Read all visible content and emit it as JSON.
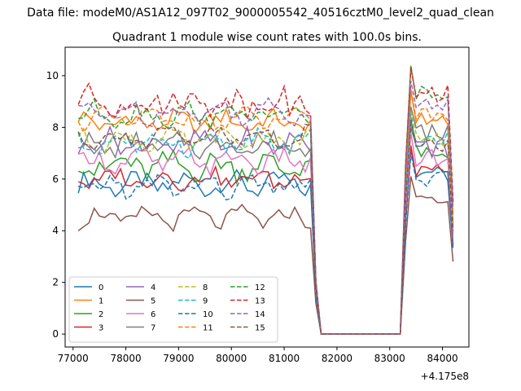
{
  "suptitle": "Data file: modeM0/AS1A12_097T02_9000005542_40516cztM0_level2_quad_clean",
  "chart_data": {
    "type": "line",
    "title": "Quadrant 1 module wise count rates with 100.0s bins.",
    "xlabel": "",
    "ylabel": "",
    "x_offset_label": "+4.175e8",
    "xlim": [
      76850,
      84500
    ],
    "ylim": [
      -0.5,
      11.1
    ],
    "x_ticks": [
      77000,
      78000,
      79000,
      80000,
      81000,
      82000,
      83000,
      84000
    ],
    "y_ticks": [
      0,
      2,
      4,
      6,
      8,
      10
    ],
    "grid": false,
    "legend_position": "lower-left",
    "legend_columns": 4,
    "x_segments": [
      {
        "start": 77100,
        "end": 81500,
        "step": 100
      },
      {
        "start": 81600,
        "end": 81700,
        "step": 100
      },
      {
        "start": 83200,
        "end": 83300,
        "step": 100
      },
      {
        "start": 83400,
        "end": 84200,
        "step": 100
      }
    ],
    "series": [
      {
        "name": "0",
        "color": "#1f77b4",
        "dash": "solid",
        "base": 5.8,
        "amp": 0.35,
        "drop": 1.5,
        "post": 6.2
      },
      {
        "name": "1",
        "color": "#ff7f0e",
        "dash": "solid",
        "base": 8.2,
        "amp": 0.3,
        "drop": 2.0,
        "post": 8.4
      },
      {
        "name": "2",
        "color": "#2ca02c",
        "dash": "solid",
        "base": 6.5,
        "amp": 0.45,
        "drop": 1.8,
        "post": 7.0
      },
      {
        "name": "3",
        "color": "#d62728",
        "dash": "solid",
        "base": 6.0,
        "amp": 0.3,
        "drop": 1.6,
        "post": 6.3
      },
      {
        "name": "4",
        "color": "#9467bd",
        "dash": "solid",
        "base": 7.4,
        "amp": 0.4,
        "drop": 1.9,
        "post": 7.2
      },
      {
        "name": "5",
        "color": "#8c564b",
        "dash": "solid",
        "base": 4.5,
        "amp": 0.3,
        "drop": 1.2,
        "post": 5.1
      },
      {
        "name": "6",
        "color": "#e377c2",
        "dash": "solid",
        "base": 6.7,
        "amp": 0.35,
        "drop": 1.7,
        "post": 6.8
      },
      {
        "name": "7",
        "color": "#7f7f7f",
        "dash": "solid",
        "base": 7.3,
        "amp": 0.35,
        "drop": 1.8,
        "post": 7.8
      },
      {
        "name": "8",
        "color": "#bcbd22",
        "dash": "dashed",
        "base": 7.5,
        "amp": 0.3,
        "drop": 1.9,
        "post": 7.6
      },
      {
        "name": "9",
        "color": "#17becf",
        "dash": "dashed",
        "base": 7.4,
        "amp": 0.35,
        "drop": 1.9,
        "post": 7.5
      },
      {
        "name": "10",
        "color": "#1f77b4",
        "dash": "dashed",
        "base": 5.7,
        "amp": 0.35,
        "drop": 1.5,
        "post": 6.0
      },
      {
        "name": "11",
        "color": "#ff7f0e",
        "dash": "dashed",
        "base": 8.3,
        "amp": 0.3,
        "drop": 2.0,
        "post": 8.5
      },
      {
        "name": "12",
        "color": "#2ca02c",
        "dash": "dashed",
        "base": 8.5,
        "amp": 0.35,
        "drop": 2.0,
        "post": 9.4
      },
      {
        "name": "13",
        "color": "#d62728",
        "dash": "dashed",
        "base": 9.0,
        "amp": 0.5,
        "drop": 2.1,
        "post": 9.3
      },
      {
        "name": "14",
        "color": "#9467bd",
        "dash": "dashed",
        "base": 8.6,
        "amp": 0.35,
        "drop": 2.0,
        "post": 8.8
      },
      {
        "name": "15",
        "color": "#8c564b",
        "dash": "dashed",
        "base": 7.6,
        "amp": 0.3,
        "drop": 1.9,
        "post": 7.3
      }
    ]
  }
}
